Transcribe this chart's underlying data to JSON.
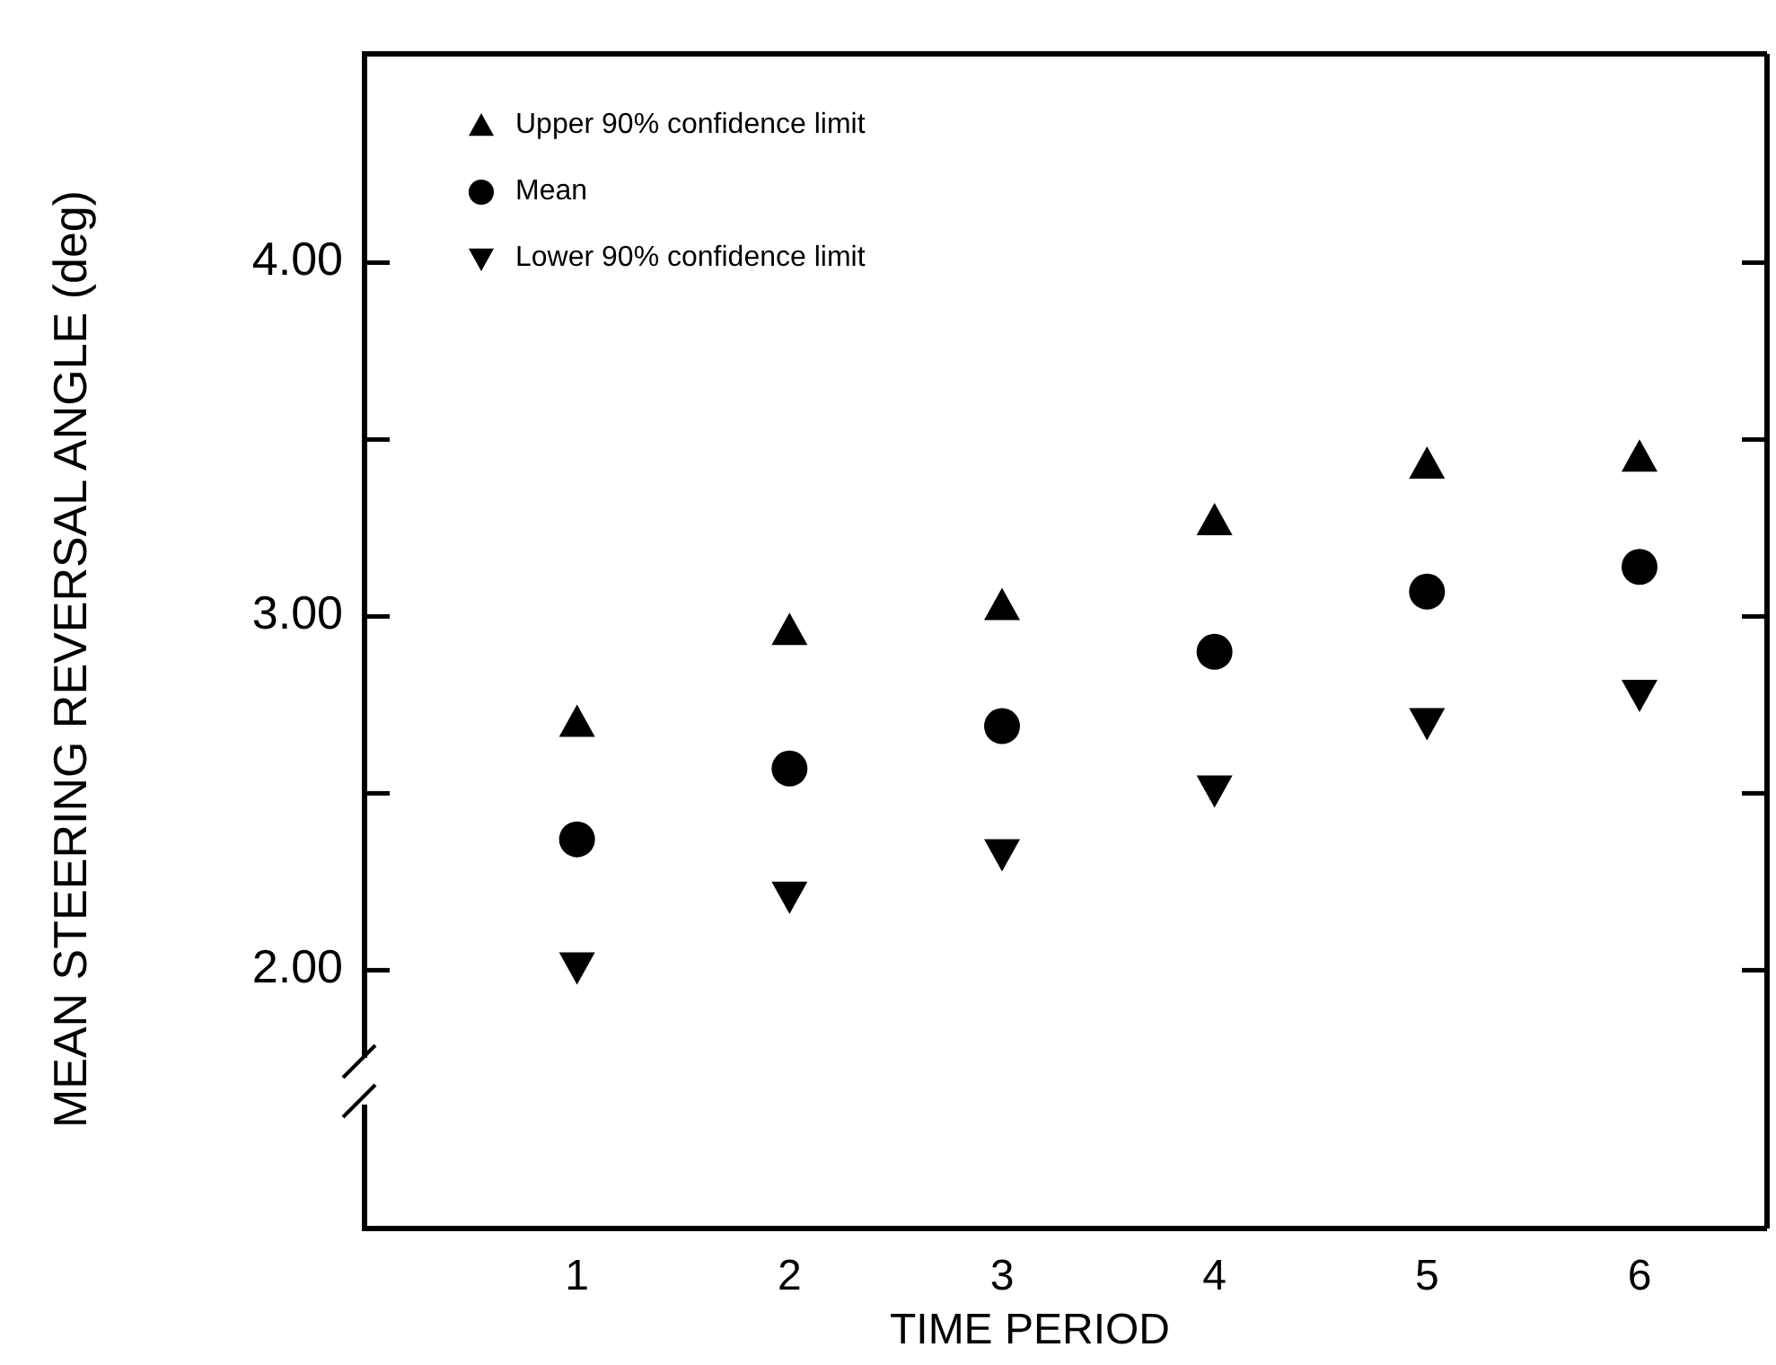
{
  "chart_data": {
    "type": "scatter",
    "xlabel": "TIME PERIOD",
    "ylabel": "MEAN STEERING REVERSAL ANGLE (deg)",
    "x": [
      1,
      2,
      3,
      4,
      5,
      6
    ],
    "series": [
      {
        "name": "Upper 90% confidence limit",
        "color": "#000000",
        "marker": "triangle",
        "values": [
          2.7,
          2.96,
          3.03,
          3.27,
          3.43,
          3.45
        ]
      },
      {
        "name": "Mean",
        "color": "#000000",
        "marker": "circle",
        "values": [
          2.37,
          2.57,
          2.69,
          2.9,
          3.07,
          3.14
        ]
      },
      {
        "name": "Lower 90% confidence limit",
        "color": "#000000",
        "marker": "triangle-down",
        "values": [
          2.01,
          2.21,
          2.33,
          2.51,
          2.7,
          2.78
        ]
      }
    ],
    "xlim": [
      0,
      6.6
    ],
    "xticks": [
      1,
      2,
      3,
      4,
      5,
      6
    ],
    "ylim": [
      1.27,
      4.59
    ],
    "yticks": [
      {
        "value": 2,
        "label": "2.00"
      },
      {
        "value": 2.5,
        "label": null
      },
      {
        "value": 3,
        "label": "3.00"
      },
      {
        "value": 3.5,
        "label": null
      },
      {
        "value": 4,
        "label": "4.00"
      }
    ],
    "legend": "top left",
    "grid": false
  }
}
